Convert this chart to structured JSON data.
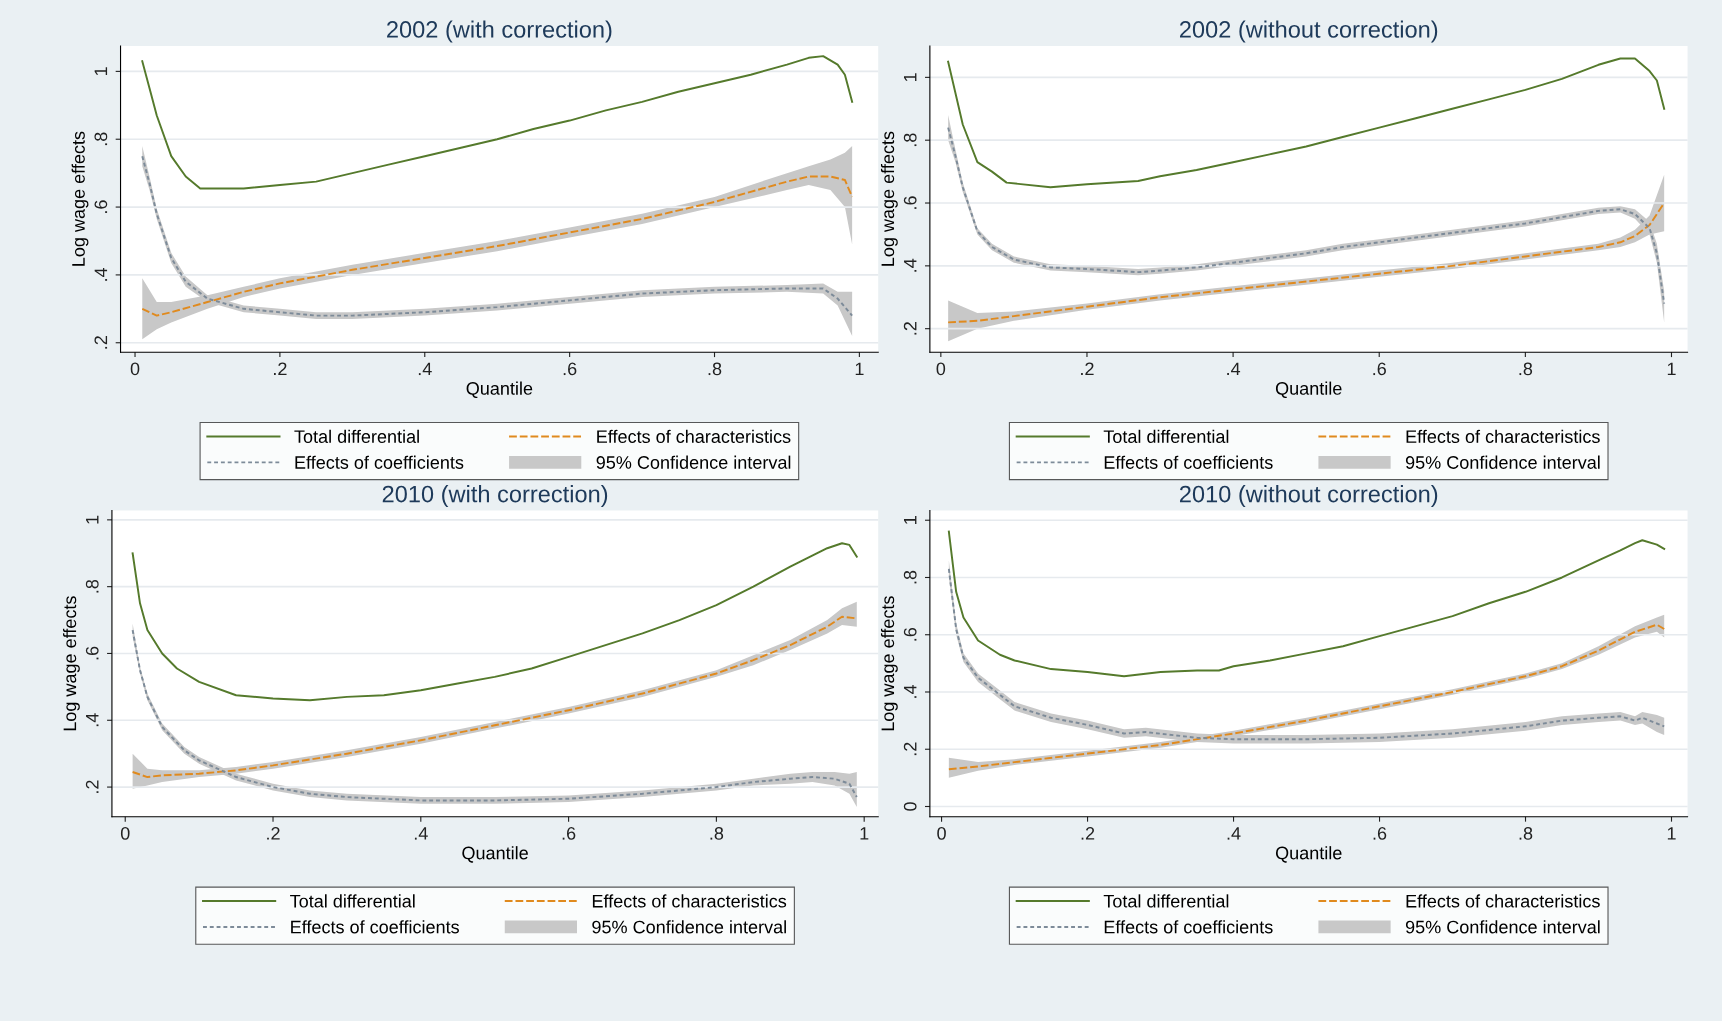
{
  "chart_data": [
    {
      "type": "line",
      "title": "2002 (with correction)",
      "xlabel": "Quantile",
      "ylabel": "Log wage effects",
      "annotations": [
        "95% Confidence interval"
      ],
      "grid": "y",
      "legend": "bottom",
      "xlim": [
        -0.02,
        1.026
      ],
      "ylim": [
        0.172,
        1.075
      ],
      "xticks": [
        0,
        {
          "value": 0.2,
          "label": ".2"
        },
        {
          "value": 0.4,
          "label": ".4"
        },
        {
          "value": 0.6,
          "label": ".6"
        },
        {
          "value": 0.8,
          "label": ".8"
        },
        1
      ],
      "yticks": [
        {
          "value": 0.2,
          "label": ".2"
        },
        {
          "value": 0.4,
          "label": ".4"
        },
        {
          "value": 0.6,
          "label": ".6"
        },
        {
          "value": 0.8,
          "label": ".8"
        },
        1
      ],
      "series": [
        {
          "name": "Total differential",
          "color": "#557a2c",
          "line_style": "solid",
          "x": [
            0.01,
            0.02,
            0.03,
            0.05,
            0.07,
            0.09,
            0.15,
            0.2,
            0.25,
            0.3,
            0.35,
            0.4,
            0.45,
            0.5,
            0.55,
            0.6,
            0.65,
            0.7,
            0.75,
            0.8,
            0.85,
            0.9,
            0.93,
            0.95,
            0.97,
            0.98,
            0.99
          ],
          "values": [
            1.03,
            0.95,
            0.87,
            0.75,
            0.69,
            0.655,
            0.655,
            0.665,
            0.675,
            0.7,
            0.725,
            0.75,
            0.775,
            0.8,
            0.83,
            0.855,
            0.885,
            0.91,
            0.94,
            0.965,
            0.99,
            1.02,
            1.04,
            1.045,
            1.02,
            0.99,
            0.91
          ]
        },
        {
          "name": "Effects of characteristics",
          "color": "#e08a1e",
          "line_style": "dashed",
          "x": [
            0.01,
            0.03,
            0.05,
            0.1,
            0.15,
            0.2,
            0.3,
            0.4,
            0.5,
            0.6,
            0.7,
            0.8,
            0.9,
            0.93,
            0.96,
            0.98,
            0.99
          ],
          "values": [
            0.3,
            0.28,
            0.29,
            0.32,
            0.35,
            0.375,
            0.415,
            0.45,
            0.485,
            0.525,
            0.565,
            0.615,
            0.675,
            0.69,
            0.69,
            0.68,
            0.63
          ],
          "lower": [
            0.21,
            0.24,
            0.26,
            0.3,
            0.335,
            0.36,
            0.4,
            0.435,
            0.47,
            0.51,
            0.55,
            0.6,
            0.65,
            0.665,
            0.65,
            0.6,
            0.49
          ],
          "upper": [
            0.39,
            0.32,
            0.32,
            0.34,
            0.365,
            0.39,
            0.43,
            0.465,
            0.5,
            0.54,
            0.58,
            0.63,
            0.7,
            0.72,
            0.74,
            0.76,
            0.78
          ]
        },
        {
          "name": "Effects of coefficients",
          "color": "#7d8b99",
          "line_style": "dotted",
          "x": [
            0.01,
            0.02,
            0.03,
            0.05,
            0.07,
            0.1,
            0.15,
            0.2,
            0.25,
            0.3,
            0.4,
            0.5,
            0.6,
            0.7,
            0.8,
            0.9,
            0.95,
            0.97,
            0.99
          ],
          "values": [
            0.75,
            0.67,
            0.58,
            0.45,
            0.38,
            0.33,
            0.3,
            0.29,
            0.28,
            0.28,
            0.29,
            0.305,
            0.325,
            0.345,
            0.355,
            0.36,
            0.36,
            0.33,
            0.28
          ],
          "lower": [
            0.72,
            0.65,
            0.565,
            0.435,
            0.365,
            0.32,
            0.29,
            0.28,
            0.27,
            0.27,
            0.28,
            0.295,
            0.315,
            0.335,
            0.345,
            0.35,
            0.345,
            0.31,
            0.22
          ],
          "upper": [
            0.78,
            0.69,
            0.595,
            0.465,
            0.395,
            0.34,
            0.31,
            0.3,
            0.29,
            0.29,
            0.3,
            0.315,
            0.335,
            0.355,
            0.365,
            0.37,
            0.375,
            0.35,
            0.35
          ]
        }
      ]
    },
    {
      "type": "line",
      "title": "2002 (without correction)",
      "xlabel": "Quantile",
      "ylabel": "Log wage effects",
      "annotations": [
        "95% Confidence interval"
      ],
      "grid": "y",
      "legend": "bottom",
      "xlim": [
        -0.015,
        1.022
      ],
      "ylim": [
        0.125,
        1.1
      ],
      "xticks": [
        0,
        {
          "value": 0.2,
          "label": ".2"
        },
        {
          "value": 0.4,
          "label": ".4"
        },
        {
          "value": 0.6,
          "label": ".6"
        },
        {
          "value": 0.8,
          "label": ".8"
        },
        1
      ],
      "yticks": [
        {
          "value": 0.2,
          "label": ".2"
        },
        {
          "value": 0.4,
          "label": ".4"
        },
        {
          "value": 0.6,
          "label": ".6"
        },
        {
          "value": 0.8,
          "label": ".8"
        },
        1
      ],
      "series": [
        {
          "name": "Total differential",
          "color": "#557a2c",
          "line_style": "solid",
          "x": [
            0.01,
            0.03,
            0.05,
            0.07,
            0.09,
            0.15,
            0.2,
            0.27,
            0.3,
            0.35,
            0.4,
            0.45,
            0.5,
            0.55,
            0.6,
            0.65,
            0.7,
            0.75,
            0.8,
            0.85,
            0.9,
            0.93,
            0.95,
            0.97,
            0.98,
            0.99
          ],
          "values": [
            1.05,
            0.85,
            0.73,
            0.7,
            0.665,
            0.65,
            0.66,
            0.67,
            0.685,
            0.705,
            0.73,
            0.755,
            0.78,
            0.81,
            0.84,
            0.87,
            0.9,
            0.93,
            0.96,
            0.995,
            1.04,
            1.06,
            1.06,
            1.02,
            0.99,
            0.9
          ]
        },
        {
          "name": "Effects of characteristics",
          "color": "#e08a1e",
          "line_style": "dashed",
          "x": [
            0.01,
            0.05,
            0.1,
            0.2,
            0.3,
            0.4,
            0.5,
            0.6,
            0.7,
            0.8,
            0.9,
            0.93,
            0.95,
            0.97,
            0.99
          ],
          "values": [
            0.22,
            0.225,
            0.24,
            0.27,
            0.3,
            0.325,
            0.35,
            0.375,
            0.4,
            0.43,
            0.46,
            0.475,
            0.495,
            0.53,
            0.6
          ],
          "lower": [
            0.16,
            0.2,
            0.225,
            0.26,
            0.29,
            0.315,
            0.34,
            0.365,
            0.39,
            0.42,
            0.45,
            0.46,
            0.475,
            0.5,
            0.51
          ],
          "upper": [
            0.29,
            0.25,
            0.255,
            0.28,
            0.31,
            0.335,
            0.36,
            0.385,
            0.41,
            0.44,
            0.47,
            0.49,
            0.515,
            0.56,
            0.69
          ]
        },
        {
          "name": "Effects of coefficients",
          "color": "#7d8b99",
          "line_style": "dotted",
          "x": [
            0.01,
            0.02,
            0.03,
            0.05,
            0.07,
            0.1,
            0.15,
            0.2,
            0.27,
            0.3,
            0.35,
            0.4,
            0.45,
            0.5,
            0.55,
            0.6,
            0.65,
            0.7,
            0.75,
            0.8,
            0.85,
            0.9,
            0.93,
            0.95,
            0.97,
            0.98,
            0.99
          ],
          "values": [
            0.84,
            0.75,
            0.65,
            0.51,
            0.46,
            0.42,
            0.395,
            0.39,
            0.38,
            0.385,
            0.395,
            0.41,
            0.425,
            0.44,
            0.46,
            0.475,
            0.49,
            0.505,
            0.52,
            0.535,
            0.555,
            0.575,
            0.58,
            0.565,
            0.52,
            0.44,
            0.28
          ],
          "lower": [
            0.8,
            0.73,
            0.635,
            0.5,
            0.45,
            0.41,
            0.385,
            0.38,
            0.37,
            0.375,
            0.385,
            0.4,
            0.415,
            0.43,
            0.45,
            0.465,
            0.48,
            0.495,
            0.51,
            0.525,
            0.545,
            0.565,
            0.57,
            0.55,
            0.5,
            0.41,
            0.22
          ],
          "upper": [
            0.88,
            0.77,
            0.665,
            0.52,
            0.47,
            0.43,
            0.405,
            0.4,
            0.39,
            0.395,
            0.405,
            0.42,
            0.435,
            0.45,
            0.47,
            0.485,
            0.5,
            0.515,
            0.53,
            0.545,
            0.565,
            0.585,
            0.59,
            0.58,
            0.54,
            0.47,
            0.32
          ]
        }
      ]
    },
    {
      "type": "line",
      "title": "2010 (with correction)",
      "xlabel": "Quantile",
      "ylabel": "Log wage effects",
      "annotations": [
        "95% Confidence interval"
      ],
      "grid": "y",
      "legend": "bottom",
      "xlim": [
        -0.018,
        1.019
      ],
      "ylim": [
        0.111,
        1.028
      ],
      "xticks": [
        0,
        {
          "value": 0.2,
          "label": ".2"
        },
        {
          "value": 0.4,
          "label": ".4"
        },
        {
          "value": 0.6,
          "label": ".6"
        },
        {
          "value": 0.8,
          "label": ".8"
        },
        1
      ],
      "yticks": [
        {
          "value": 0.2,
          "label": ".2"
        },
        {
          "value": 0.4,
          "label": ".4"
        },
        {
          "value": 0.6,
          "label": ".6"
        },
        {
          "value": 0.8,
          "label": ".8"
        },
        1
      ],
      "series": [
        {
          "name": "Total differential",
          "color": "#557a2c",
          "line_style": "solid",
          "x": [
            0.01,
            0.02,
            0.03,
            0.05,
            0.07,
            0.1,
            0.15,
            0.2,
            0.25,
            0.3,
            0.35,
            0.4,
            0.45,
            0.5,
            0.55,
            0.6,
            0.65,
            0.7,
            0.75,
            0.8,
            0.85,
            0.9,
            0.95,
            0.97,
            0.98,
            0.99
          ],
          "values": [
            0.9,
            0.75,
            0.67,
            0.6,
            0.555,
            0.515,
            0.475,
            0.465,
            0.46,
            0.47,
            0.475,
            0.49,
            0.51,
            0.53,
            0.555,
            0.59,
            0.625,
            0.66,
            0.7,
            0.745,
            0.8,
            0.86,
            0.915,
            0.93,
            0.925,
            0.89
          ]
        },
        {
          "name": "Effects of characteristics",
          "color": "#e08a1e",
          "line_style": "dashed",
          "x": [
            0.01,
            0.03,
            0.05,
            0.1,
            0.15,
            0.2,
            0.3,
            0.4,
            0.5,
            0.6,
            0.7,
            0.8,
            0.85,
            0.9,
            0.95,
            0.97,
            0.99
          ],
          "values": [
            0.245,
            0.23,
            0.235,
            0.24,
            0.25,
            0.265,
            0.3,
            0.34,
            0.385,
            0.43,
            0.48,
            0.54,
            0.58,
            0.625,
            0.68,
            0.71,
            0.705
          ],
          "lower": [
            0.195,
            0.205,
            0.215,
            0.23,
            0.24,
            0.255,
            0.29,
            0.33,
            0.375,
            0.42,
            0.47,
            0.53,
            0.565,
            0.61,
            0.66,
            0.685,
            0.68
          ],
          "upper": [
            0.3,
            0.255,
            0.25,
            0.25,
            0.26,
            0.275,
            0.31,
            0.35,
            0.395,
            0.44,
            0.49,
            0.55,
            0.595,
            0.64,
            0.7,
            0.735,
            0.755
          ]
        },
        {
          "name": "Effects of coefficients",
          "color": "#7d8b99",
          "line_style": "dotted",
          "x": [
            0.01,
            0.02,
            0.03,
            0.05,
            0.08,
            0.1,
            0.15,
            0.2,
            0.25,
            0.3,
            0.4,
            0.5,
            0.6,
            0.7,
            0.8,
            0.85,
            0.9,
            0.93,
            0.96,
            0.98,
            0.99
          ],
          "values": [
            0.67,
            0.55,
            0.47,
            0.38,
            0.31,
            0.28,
            0.23,
            0.2,
            0.18,
            0.17,
            0.16,
            0.16,
            0.165,
            0.18,
            0.2,
            0.215,
            0.225,
            0.23,
            0.225,
            0.21,
            0.17
          ],
          "lower": [
            0.65,
            0.54,
            0.46,
            0.37,
            0.3,
            0.27,
            0.22,
            0.19,
            0.17,
            0.16,
            0.15,
            0.15,
            0.155,
            0.17,
            0.19,
            0.205,
            0.21,
            0.215,
            0.205,
            0.18,
            0.14
          ],
          "upper": [
            0.69,
            0.56,
            0.48,
            0.39,
            0.32,
            0.29,
            0.24,
            0.21,
            0.19,
            0.18,
            0.17,
            0.17,
            0.175,
            0.19,
            0.21,
            0.225,
            0.24,
            0.245,
            0.245,
            0.24,
            0.245
          ]
        }
      ]
    },
    {
      "type": "line",
      "title": "2010 (without correction)",
      "xlabel": "Quantile",
      "ylabel": "Log wage effects",
      "annotations": [
        "95% Confidence interval"
      ],
      "grid": "y",
      "legend": "bottom",
      "xlim": [
        -0.016,
        1.022
      ],
      "ylim": [
        -0.036,
        1.034
      ],
      "xticks": [
        0,
        {
          "value": 0.2,
          "label": ".2"
        },
        {
          "value": 0.4,
          "label": ".4"
        },
        {
          "value": 0.6,
          "label": ".6"
        },
        {
          "value": 0.8,
          "label": ".8"
        },
        1
      ],
      "yticks": [
        0,
        {
          "value": 0.2,
          "label": ".2"
        },
        {
          "value": 0.4,
          "label": ".4"
        },
        {
          "value": 0.6,
          "label": ".6"
        },
        {
          "value": 0.8,
          "label": ".8"
        },
        1
      ],
      "series": [
        {
          "name": "Total differential",
          "color": "#557a2c",
          "line_style": "solid",
          "x": [
            0.01,
            0.02,
            0.03,
            0.05,
            0.08,
            0.1,
            0.15,
            0.2,
            0.25,
            0.3,
            0.35,
            0.38,
            0.4,
            0.45,
            0.5,
            0.55,
            0.6,
            0.65,
            0.7,
            0.75,
            0.8,
            0.85,
            0.9,
            0.93,
            0.95,
            0.96,
            0.98,
            0.99
          ],
          "values": [
            0.96,
            0.75,
            0.66,
            0.58,
            0.53,
            0.51,
            0.48,
            0.47,
            0.455,
            0.47,
            0.475,
            0.475,
            0.49,
            0.51,
            0.535,
            0.56,
            0.595,
            0.63,
            0.665,
            0.71,
            0.75,
            0.8,
            0.86,
            0.895,
            0.92,
            0.93,
            0.915,
            0.9
          ]
        },
        {
          "name": "Effects of characteristics",
          "color": "#e08a1e",
          "line_style": "dashed",
          "x": [
            0.01,
            0.05,
            0.1,
            0.2,
            0.3,
            0.4,
            0.5,
            0.6,
            0.7,
            0.8,
            0.85,
            0.9,
            0.95,
            0.98,
            0.99
          ],
          "values": [
            0.13,
            0.14,
            0.155,
            0.185,
            0.215,
            0.255,
            0.3,
            0.35,
            0.4,
            0.455,
            0.49,
            0.545,
            0.61,
            0.635,
            0.62
          ],
          "lower": [
            0.1,
            0.125,
            0.145,
            0.175,
            0.205,
            0.245,
            0.29,
            0.34,
            0.39,
            0.445,
            0.48,
            0.53,
            0.59,
            0.61,
            0.59
          ],
          "upper": [
            0.17,
            0.155,
            0.165,
            0.195,
            0.225,
            0.265,
            0.31,
            0.36,
            0.41,
            0.465,
            0.5,
            0.56,
            0.63,
            0.66,
            0.67
          ]
        },
        {
          "name": "Effects of coefficients",
          "color": "#7d8b99",
          "line_style": "dotted",
          "x": [
            0.01,
            0.02,
            0.03,
            0.05,
            0.08,
            0.1,
            0.15,
            0.2,
            0.25,
            0.28,
            0.35,
            0.4,
            0.5,
            0.6,
            0.7,
            0.8,
            0.85,
            0.9,
            0.93,
            0.95,
            0.96,
            0.98,
            0.99
          ],
          "values": [
            0.83,
            0.62,
            0.52,
            0.45,
            0.39,
            0.35,
            0.31,
            0.285,
            0.255,
            0.26,
            0.24,
            0.235,
            0.235,
            0.24,
            0.255,
            0.28,
            0.3,
            0.31,
            0.315,
            0.3,
            0.31,
            0.29,
            0.28
          ],
          "lower": [
            0.8,
            0.6,
            0.505,
            0.435,
            0.375,
            0.335,
            0.295,
            0.27,
            0.24,
            0.245,
            0.225,
            0.22,
            0.22,
            0.225,
            0.24,
            0.265,
            0.285,
            0.295,
            0.3,
            0.285,
            0.29,
            0.26,
            0.25
          ],
          "upper": [
            0.86,
            0.64,
            0.535,
            0.465,
            0.405,
            0.365,
            0.325,
            0.3,
            0.27,
            0.275,
            0.255,
            0.25,
            0.25,
            0.255,
            0.27,
            0.295,
            0.315,
            0.325,
            0.33,
            0.315,
            0.33,
            0.32,
            0.31
          ]
        }
      ]
    }
  ]
}
